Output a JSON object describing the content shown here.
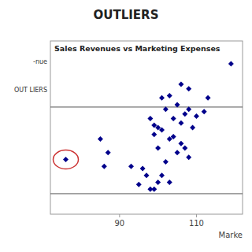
{
  "chart_data": {
    "type": "scatter",
    "title": "OUTLIERS",
    "subtitle": "Sales Revenues vs Marketing Expenses",
    "xlabel": "Marke",
    "annotations": [
      "-nue",
      "OUT LIERS"
    ],
    "x": [
      100,
      103,
      98,
      102,
      105,
      108,
      106,
      104,
      101,
      107,
      109,
      110,
      99,
      103,
      106,
      100,
      105,
      102,
      108,
      107,
      104,
      99,
      101,
      106,
      108,
      112,
      113,
      96,
      97,
      95,
      93,
      98,
      100,
      101,
      103,
      99,
      85,
      87,
      86,
      119
    ],
    "values": [
      0.58,
      0.65,
      0.6,
      0.62,
      0.63,
      0.62,
      0.59,
      0.6,
      0.575,
      0.61,
      0.58,
      0.605,
      0.565,
      0.555,
      0.545,
      0.535,
      0.525,
      0.505,
      0.515,
      0.535,
      0.56,
      0.585,
      0.645,
      0.675,
      0.665,
      0.615,
      0.645,
      0.49,
      0.475,
      0.455,
      0.495,
      0.445,
      0.46,
      0.475,
      0.46,
      0.445,
      0.555,
      0.525,
      0.495,
      0.72
    ],
    "color": "#00008B",
    "marker": "diamond",
    "outlier": {
      "x": 76,
      "y": 0.51,
      "color": "#cc3333"
    },
    "hlines": [
      0.625,
      0.435
    ],
    "xlim": [
      72,
      122
    ],
    "ylim": [
      0.39,
      0.77
    ],
    "xticks": [
      90,
      110
    ],
    "tick_labels": "x",
    "grid": false
  }
}
